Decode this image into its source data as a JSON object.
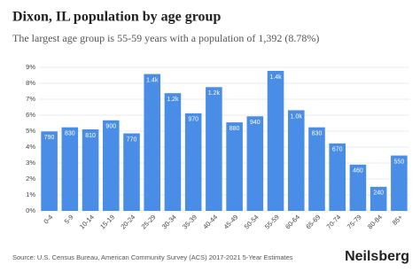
{
  "chart_data": {
    "type": "bar",
    "title": "Dixon, IL population by age group",
    "subtitle": "The largest age group is 55-59 years with a population of 1,392 (8.78%)",
    "categories": [
      "0-4",
      "5-9",
      "10-14",
      "15-19",
      "20-24",
      "25-29",
      "30-34",
      "35-39",
      "40-44",
      "45-49",
      "50-54",
      "55-59",
      "60-64",
      "65-69",
      "70-74",
      "75-79",
      "80-84",
      "85+"
    ],
    "values": [
      4.98,
      5.24,
      5.11,
      5.68,
      4.86,
      8.58,
      7.38,
      6.12,
      7.76,
      5.55,
      5.93,
      8.78,
      6.31,
      5.24,
      4.23,
      2.9,
      1.51,
      3.47
    ],
    "populations": [
      790,
      830,
      810,
      900,
      770,
      1360,
      1170,
      970,
      1230,
      880,
      940,
      1392,
      1000,
      830,
      670,
      460,
      240,
      550
    ],
    "population_labels": [
      "790",
      "830",
      "810",
      "900",
      "770",
      "1.4k",
      "1.2k",
      "970",
      "1.2k",
      "880",
      "940",
      "1.4k",
      "1.0k",
      "830",
      "670",
      "460",
      "240",
      "550"
    ],
    "color": "#4a8de6",
    "ylim": [
      0,
      9
    ],
    "yticks": [
      {
        "value": 0,
        "label": "0%"
      },
      {
        "value": 1,
        "label": "1%"
      },
      {
        "value": 2,
        "label": "2%"
      },
      {
        "value": 3,
        "label": "3%"
      },
      {
        "value": 4,
        "label": "4%"
      },
      {
        "value": 5,
        "label": "5%"
      },
      {
        "value": 6,
        "label": "6%"
      },
      {
        "value": 7,
        "label": "7%"
      },
      {
        "value": 8,
        "label": "8%"
      },
      {
        "value": 9,
        "label": "9%"
      }
    ],
    "grid": true,
    "source": "Source: U.S. Census Bureau, American Community Survey (ACS) 2017-2021 5-Year Estimates",
    "brand": "Neilsberg"
  }
}
